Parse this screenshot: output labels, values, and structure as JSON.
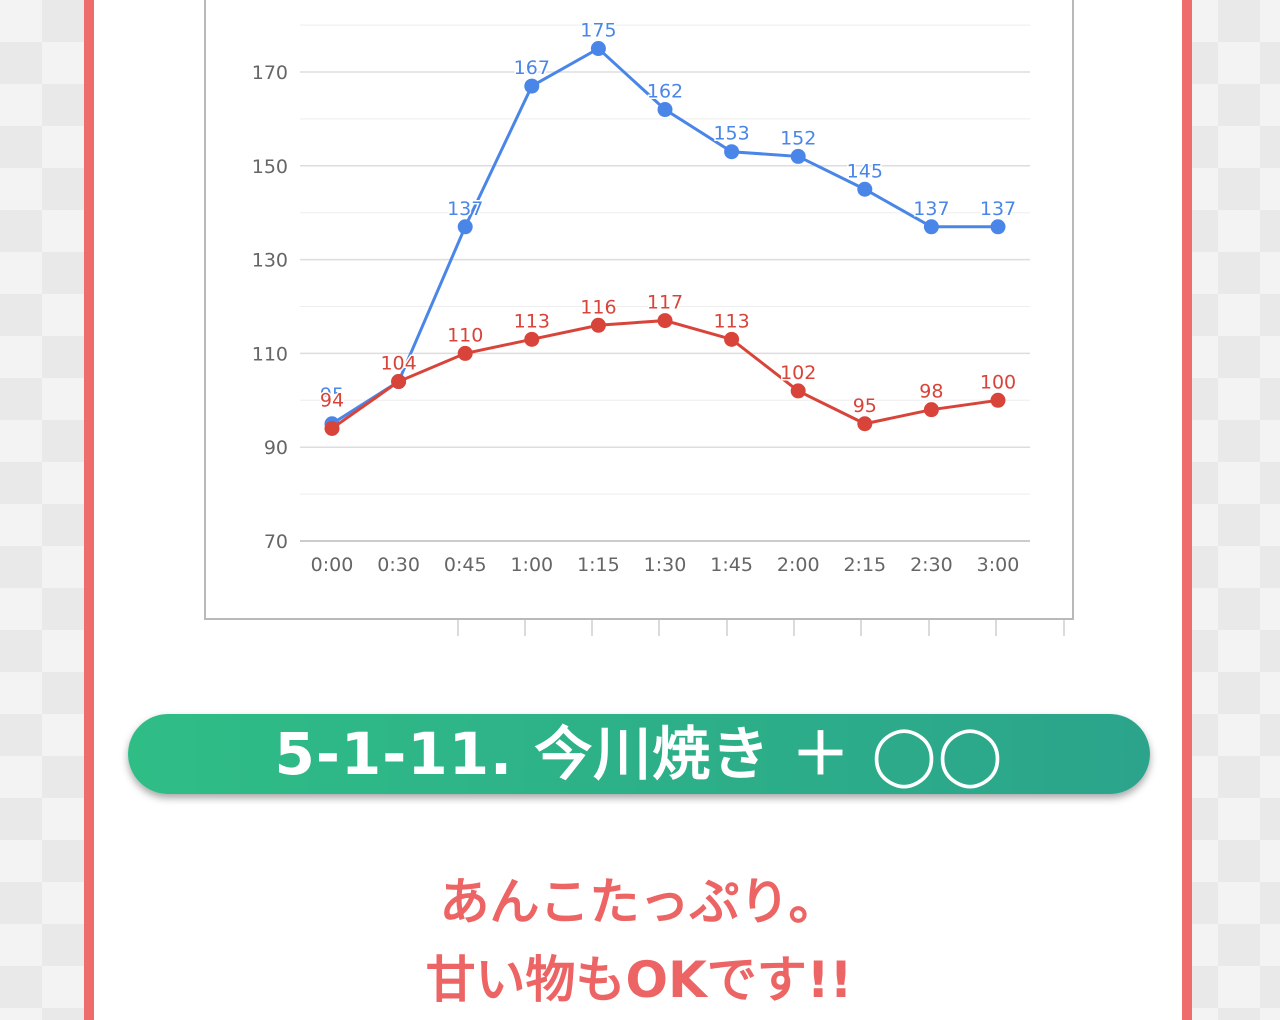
{
  "heading": "5-1-11. 今川焼き ＋ ◯◯",
  "caption": {
    "line1": "あんこたっぷり。",
    "line2": "甘い物もOKです!!"
  },
  "colors": {
    "border": "#ee6c6c",
    "heading_bg": "#2fbd86",
    "caption": "#ec6464"
  },
  "chart_data": {
    "type": "line",
    "categories": [
      "0:00",
      "0:30",
      "0:45",
      "1:00",
      "1:15",
      "1:30",
      "1:45",
      "2:00",
      "2:15",
      "2:30",
      "3:00"
    ],
    "y_ticks": [
      70,
      90,
      110,
      130,
      150,
      170
    ],
    "ylim": [
      70,
      180
    ],
    "grid": true,
    "series": [
      {
        "color": "#4a86e8",
        "values": [
          95,
          104,
          137,
          167,
          175,
          162,
          153,
          152,
          145,
          137,
          137
        ]
      },
      {
        "color": "#d9443a",
        "values": [
          94,
          104,
          110,
          113,
          116,
          117,
          113,
          102,
          95,
          98,
          100
        ]
      }
    ]
  }
}
